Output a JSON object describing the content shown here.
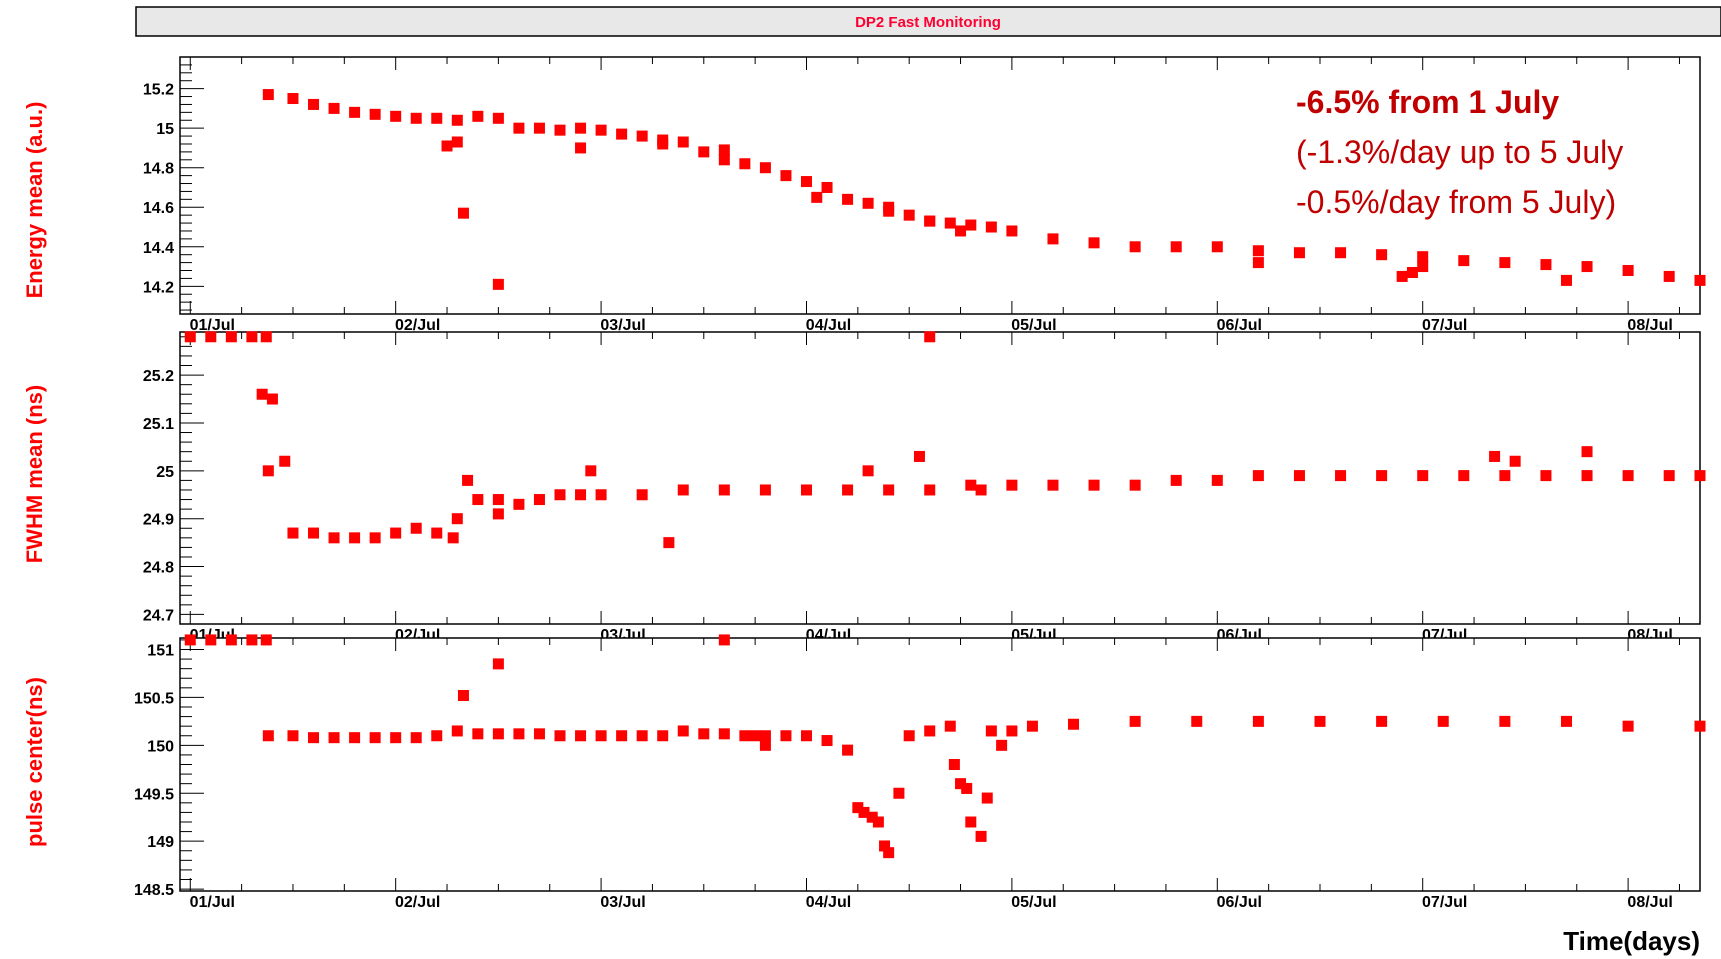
{
  "chart_data": [
    {
      "type": "scatter",
      "title": "DP2 Fast Monitoring",
      "ylabel": "Energy mean (a.u.)",
      "ylim": [
        14.06,
        15.36
      ],
      "yticks": [
        14.2,
        14.4,
        14.6,
        14.8,
        15,
        15.2
      ],
      "ytick_labels": [
        "14.2",
        "14.4",
        "14.6",
        "14.8",
        "15",
        "15.2"
      ],
      "xlim": [
        -0.05,
        7.35
      ],
      "xticks": [
        0,
        1,
        2,
        3,
        4,
        5,
        6,
        7
      ],
      "xtick_labels": [
        "01/Jul",
        "02/Jul",
        "03/Jul",
        "04/Jul",
        "05/Jul",
        "06/Jul",
        "07/Jul",
        "08/Jul"
      ],
      "marker_color": "#ff0000",
      "annotations": [
        "-6.5% from 1 July",
        "(-1.3%/day up to 5 July",
        "-0.5%/day from 5 July)"
      ],
      "series": [
        {
          "x": [
            0.38,
            0.5,
            0.6,
            0.7,
            0.8,
            0.9,
            1.0,
            1.1,
            1.2,
            1.3,
            1.4,
            1.5,
            1.6,
            1.7,
            1.8,
            1.9,
            2.0,
            2.1,
            2.2,
            2.3,
            2.4,
            2.5,
            2.6,
            2.7,
            2.8,
            2.9,
            3.0,
            3.1,
            3.2,
            3.3,
            3.4,
            3.5,
            3.6,
            3.7,
            3.8,
            3.9,
            4.0,
            4.2,
            4.4,
            4.6,
            4.8,
            5.0,
            5.2,
            5.4,
            5.6,
            5.8,
            6.0,
            6.2,
            6.4,
            6.6,
            6.8,
            7.0,
            7.2,
            7.35,
            1.33,
            1.5,
            1.25,
            1.3,
            2.3,
            1.9,
            2.6,
            3.05,
            3.4,
            3.6,
            3.75,
            5.2,
            5.9,
            5.95,
            6.0,
            6.7
          ],
          "y": [
            15.17,
            15.15,
            15.12,
            15.1,
            15.08,
            15.07,
            15.06,
            15.05,
            15.05,
            15.04,
            15.06,
            15.05,
            15.0,
            15.0,
            14.99,
            15.0,
            14.99,
            14.97,
            14.96,
            14.94,
            14.93,
            14.88,
            14.84,
            14.82,
            14.8,
            14.76,
            14.73,
            14.7,
            14.64,
            14.62,
            14.6,
            14.56,
            14.53,
            14.52,
            14.51,
            14.5,
            14.48,
            14.44,
            14.42,
            14.4,
            14.4,
            14.4,
            14.38,
            14.37,
            14.37,
            14.36,
            14.35,
            14.33,
            14.32,
            14.31,
            14.3,
            14.28,
            14.25,
            14.23,
            14.57,
            14.21,
            14.91,
            14.93,
            14.92,
            14.9,
            14.89,
            14.65,
            14.58,
            14.53,
            14.48,
            14.32,
            14.25,
            14.27,
            14.3,
            14.23
          ]
        }
      ]
    },
    {
      "type": "scatter",
      "ylabel": "FWHM mean (ns)",
      "ylim": [
        24.68,
        25.29
      ],
      "yticks": [
        24.7,
        24.8,
        24.9,
        25,
        25.1,
        25.2
      ],
      "ytick_labels": [
        "24.7",
        "24.8",
        "24.9",
        "25",
        "25.1",
        "25.2"
      ],
      "xlim": [
        -0.05,
        7.35
      ],
      "xticks": [
        0,
        1,
        2,
        3,
        4,
        5,
        6,
        7
      ],
      "marker_color": "#ff0000",
      "series": [
        {
          "x": [
            0.0,
            0.1,
            0.2,
            0.3,
            0.37,
            3.6,
            0.35,
            0.4,
            0.38,
            0.46,
            0.5,
            0.6,
            0.7,
            0.8,
            0.9,
            1.0,
            1.1,
            1.2,
            1.3,
            1.4,
            1.5,
            1.6,
            1.7,
            1.8,
            1.9,
            2.0,
            2.2,
            2.4,
            2.6,
            2.8,
            3.0,
            3.2,
            3.4,
            3.6,
            3.8,
            4.0,
            4.2,
            4.4,
            4.6,
            4.8,
            5.0,
            5.2,
            5.4,
            5.6,
            5.8,
            6.0,
            6.2,
            6.4,
            6.6,
            6.8,
            7.0,
            7.2,
            7.35,
            2.33,
            1.35,
            1.95,
            3.3,
            3.55,
            3.85,
            6.35,
            6.8,
            6.45,
            1.28,
            1.5
          ],
          "y": [
            25.28,
            25.28,
            25.28,
            25.28,
            25.28,
            25.28,
            25.16,
            25.15,
            25.0,
            25.02,
            24.87,
            24.87,
            24.86,
            24.86,
            24.86,
            24.87,
            24.88,
            24.87,
            24.9,
            24.94,
            24.94,
            24.93,
            24.94,
            24.95,
            24.95,
            24.95,
            24.95,
            24.96,
            24.96,
            24.96,
            24.96,
            24.96,
            24.96,
            24.96,
            24.97,
            24.97,
            24.97,
            24.97,
            24.97,
            24.98,
            24.98,
            24.99,
            24.99,
            24.99,
            24.99,
            24.99,
            24.99,
            24.99,
            24.99,
            24.99,
            24.99,
            24.99,
            24.99,
            24.85,
            24.98,
            25.0,
            25.0,
            25.03,
            24.96,
            25.03,
            25.04,
            25.02,
            24.86,
            24.91
          ]
        }
      ]
    },
    {
      "type": "scatter",
      "ylabel": "pulse center(ns)",
      "xlabel": "Time(days)",
      "ylim": [
        148.48,
        151.12
      ],
      "yticks": [
        148.5,
        149,
        149.5,
        150,
        150.5,
        151
      ],
      "ytick_labels": [
        "148.5",
        "149",
        "149.5",
        "150",
        "150.5",
        "151"
      ],
      "xlim": [
        -0.05,
        7.35
      ],
      "xticks": [
        0,
        1,
        2,
        3,
        4,
        5,
        6,
        7
      ],
      "xtick_labels": [
        "01/Jul",
        "02/Jul",
        "03/Jul",
        "04/Jul",
        "05/Jul",
        "06/Jul",
        "07/Jul",
        "08/Jul"
      ],
      "marker_color": "#ff0000",
      "series": [
        {
          "x": [
            0.0,
            0.1,
            0.2,
            0.3,
            0.37,
            2.6,
            0.38,
            0.5,
            0.6,
            0.7,
            0.8,
            0.9,
            1.0,
            1.1,
            1.2,
            1.3,
            1.4,
            1.5,
            1.6,
            1.7,
            1.8,
            1.9,
            2.0,
            2.1,
            2.2,
            2.3,
            2.4,
            2.5,
            2.6,
            2.7,
            2.8,
            2.9,
            3.0,
            3.1,
            3.2,
            3.25,
            3.28,
            3.32,
            3.35,
            3.38,
            3.4,
            3.45,
            3.5,
            3.6,
            3.7,
            3.72,
            3.75,
            3.78,
            3.8,
            3.85,
            3.88,
            3.9,
            3.95,
            4.0,
            4.1,
            4.3,
            4.6,
            4.9,
            5.2,
            5.5,
            5.8,
            6.1,
            6.4,
            6.7,
            7.0,
            7.35,
            1.33,
            1.5,
            2.75,
            2.8
          ],
          "y": [
            151.1,
            151.1,
            151.1,
            151.1,
            151.1,
            151.1,
            150.1,
            150.1,
            150.08,
            150.08,
            150.08,
            150.08,
            150.08,
            150.08,
            150.1,
            150.15,
            150.12,
            150.12,
            150.12,
            150.12,
            150.1,
            150.1,
            150.1,
            150.1,
            150.1,
            150.1,
            150.15,
            150.12,
            150.12,
            150.1,
            150.1,
            150.1,
            150.1,
            150.05,
            149.95,
            149.35,
            149.3,
            149.25,
            149.2,
            148.95,
            148.88,
            149.5,
            150.1,
            150.15,
            150.2,
            149.8,
            149.6,
            149.55,
            149.2,
            149.05,
            149.45,
            150.15,
            150.0,
            150.15,
            150.2,
            150.22,
            150.25,
            150.25,
            150.25,
            150.25,
            150.25,
            150.25,
            150.25,
            150.25,
            150.2,
            150.2,
            150.52,
            150.85,
            150.1,
            150.0
          ]
        }
      ]
    }
  ]
}
